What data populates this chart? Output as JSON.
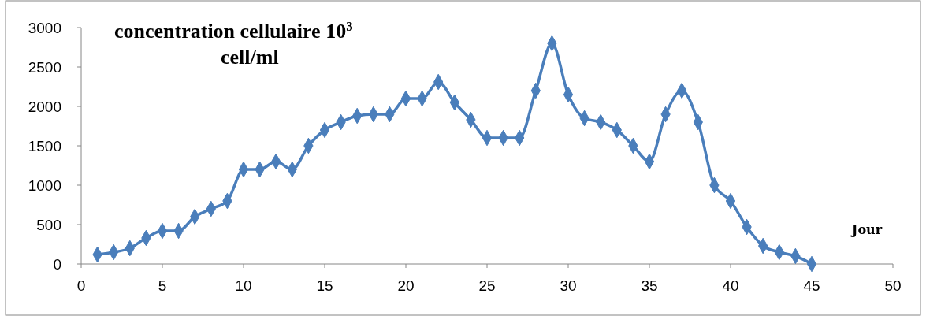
{
  "chart_data": {
    "type": "line",
    "title": "concentration cellulaire 10$^{3}$ cell/ml",
    "xlabel": "Jour",
    "x": [
      1,
      2,
      3,
      4,
      5,
      6,
      7,
      8,
      9,
      10,
      11,
      12,
      13,
      14,
      15,
      16,
      17,
      18,
      19,
      20,
      21,
      22,
      23,
      24,
      25,
      26,
      27,
      28,
      29,
      30,
      31,
      32,
      33,
      34,
      35,
      36,
      37,
      38,
      39,
      40,
      41,
      42,
      43,
      44,
      45
    ],
    "series": [
      {
        "color": "#4a7ebb",
        "values": [
          120,
          150,
          200,
          330,
          420,
          420,
          600,
          700,
          800,
          1200,
          1200,
          1300,
          1200,
          1500,
          1700,
          1800,
          1880,
          1900,
          1900,
          2100,
          2100,
          2310,
          2050,
          1830,
          1600,
          1600,
          1600,
          2200,
          2800,
          2150,
          1850,
          1800,
          1700,
          1500,
          1300,
          1900,
          2200,
          1800,
          1000,
          800,
          470,
          230,
          150,
          100,
          0
        ]
      }
    ],
    "xlim": [
      0,
      50
    ],
    "xticks": [
      0,
      5,
      10,
      15,
      20,
      25,
      30,
      35,
      40,
      45,
      50
    ],
    "ylim": [
      0,
      3000
    ],
    "yticks": [
      0,
      500,
      1000,
      1500,
      2000,
      2500,
      3000
    ],
    "grid": false,
    "marker": "diamond",
    "line_style": "solid"
  }
}
